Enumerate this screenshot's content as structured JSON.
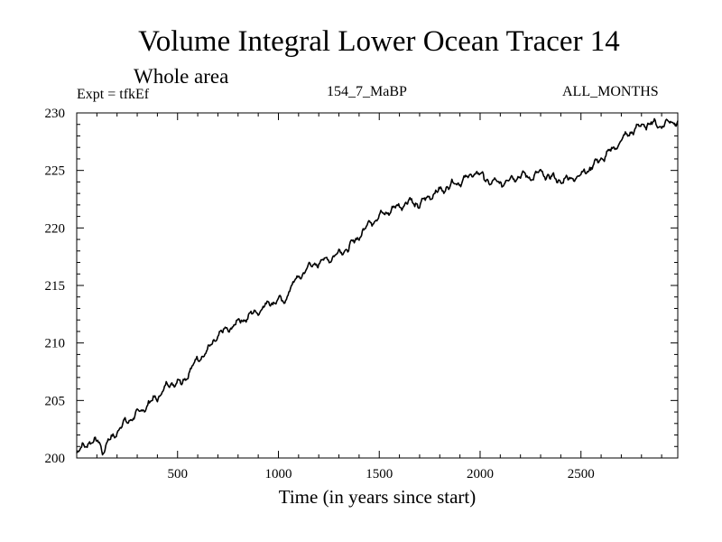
{
  "header": {
    "title": "Volume Integral Lower Ocean Tracer 14",
    "subtitle": "Whole area",
    "expt_label": "Expt = tfkEf",
    "run_label": "154_7_MaBP",
    "months_label": "ALL_MONTHS"
  },
  "colors": {
    "line": "#000000",
    "axes": "#000000",
    "background": "#ffffff"
  },
  "chart_data": {
    "type": "line",
    "title": "Volume Integral Lower Ocean Tracer 14",
    "subtitle": "Whole area",
    "xlabel": "Time (in years since start)",
    "ylabel": "",
    "xlim": [
      0,
      2980
    ],
    "ylim": [
      200,
      230
    ],
    "grid": false,
    "x_ticks": [
      500,
      1000,
      1500,
      2000,
      2500
    ],
    "y_ticks": [
      200,
      205,
      210,
      215,
      220,
      225,
      230
    ],
    "series": [
      {
        "values": [
          [
            0,
            200.3
          ],
          [
            30,
            201.0
          ],
          [
            60,
            201.4
          ],
          [
            90,
            201.3
          ],
          [
            110,
            201.6
          ],
          [
            130,
            200.5
          ],
          [
            160,
            201.5
          ],
          [
            200,
            202.3
          ],
          [
            240,
            203.1
          ],
          [
            300,
            203.8
          ],
          [
            350,
            204.6
          ],
          [
            400,
            205.3
          ],
          [
            450,
            206.3
          ],
          [
            500,
            206.7
          ],
          [
            520,
            206.4
          ],
          [
            550,
            207.3
          ],
          [
            600,
            208.6
          ],
          [
            650,
            209.3
          ],
          [
            700,
            210.7
          ],
          [
            750,
            211.2
          ],
          [
            800,
            211.8
          ],
          [
            850,
            212.3
          ],
          [
            900,
            212.8
          ],
          [
            950,
            213.4
          ],
          [
            1000,
            213.8
          ],
          [
            1030,
            213.4
          ],
          [
            1050,
            214.6
          ],
          [
            1100,
            215.7
          ],
          [
            1150,
            216.6
          ],
          [
            1200,
            217.0
          ],
          [
            1250,
            217.3
          ],
          [
            1300,
            217.8
          ],
          [
            1350,
            218.3
          ],
          [
            1400,
            219.3
          ],
          [
            1450,
            220.4
          ],
          [
            1500,
            221.0
          ],
          [
            1550,
            221.5
          ],
          [
            1600,
            221.9
          ],
          [
            1650,
            222.3
          ],
          [
            1700,
            222.0
          ],
          [
            1750,
            222.8
          ],
          [
            1800,
            223.2
          ],
          [
            1850,
            223.7
          ],
          [
            1900,
            224.0
          ],
          [
            1950,
            224.5
          ],
          [
            1980,
            224.9
          ],
          [
            2000,
            224.6
          ],
          [
            2050,
            224.0
          ],
          [
            2100,
            223.9
          ],
          [
            2150,
            224.2
          ],
          [
            2200,
            224.6
          ],
          [
            2250,
            224.4
          ],
          [
            2300,
            224.8
          ],
          [
            2350,
            224.4
          ],
          [
            2400,
            224.1
          ],
          [
            2450,
            224.3
          ],
          [
            2500,
            224.6
          ],
          [
            2550,
            225.3
          ],
          [
            2600,
            226.0
          ],
          [
            2650,
            226.7
          ],
          [
            2700,
            227.6
          ],
          [
            2750,
            228.4
          ],
          [
            2800,
            228.9
          ],
          [
            2850,
            229.1
          ],
          [
            2900,
            228.9
          ],
          [
            2950,
            229.3
          ],
          [
            2980,
            229.2
          ]
        ]
      }
    ]
  }
}
